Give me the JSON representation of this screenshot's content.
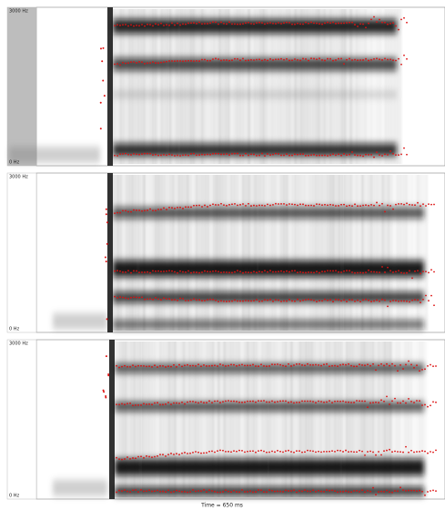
{
  "panels": [
    {
      "top_label": "3000 Hz",
      "bottom_label": "0 Hz"
    },
    {
      "top_label": "3000 Hz",
      "bottom_label": "0 Hz"
    },
    {
      "top_label": "3000 Hz",
      "bottom_label": "0 Hz"
    }
  ],
  "footer": "Time = 650 ms"
}
